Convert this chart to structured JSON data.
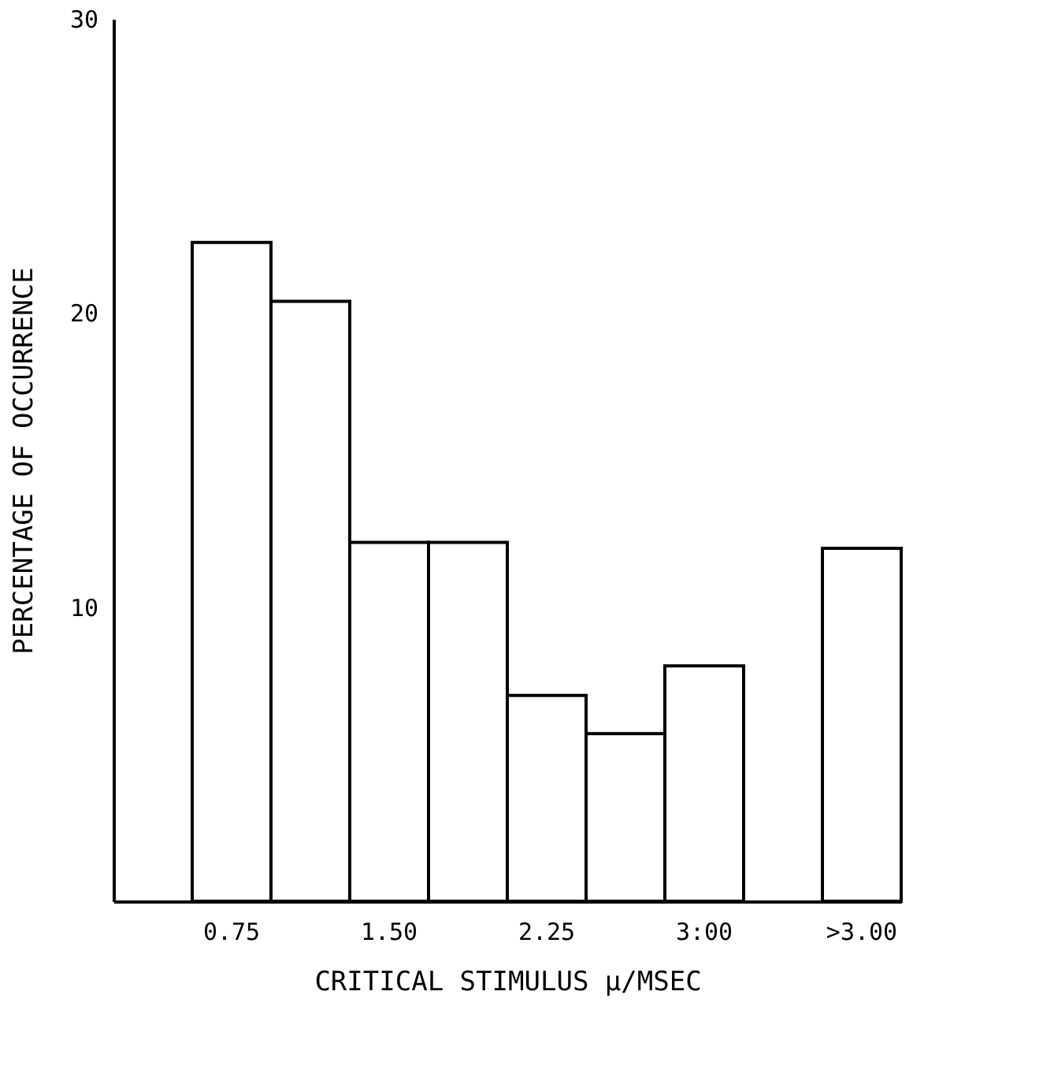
{
  "chart_data": {
    "type": "bar",
    "xlabel": "CRITICAL STIMULUS μ/MSEC",
    "ylabel": "PERCENTAGE OF OCCURRENCE",
    "categories": [
      null,
      "0.75",
      null,
      "1.50",
      null,
      "2.25",
      null,
      "3:00",
      null,
      ">3.00"
    ],
    "values": [
      null,
      22.4,
      20.4,
      12.2,
      12.2,
      7.0,
      5.7,
      8.0,
      null,
      12.0
    ],
    "color": "#ffffff",
    "ylim": [
      0,
      30
    ],
    "yticks": [
      10,
      20,
      30
    ],
    "grid": false
  }
}
